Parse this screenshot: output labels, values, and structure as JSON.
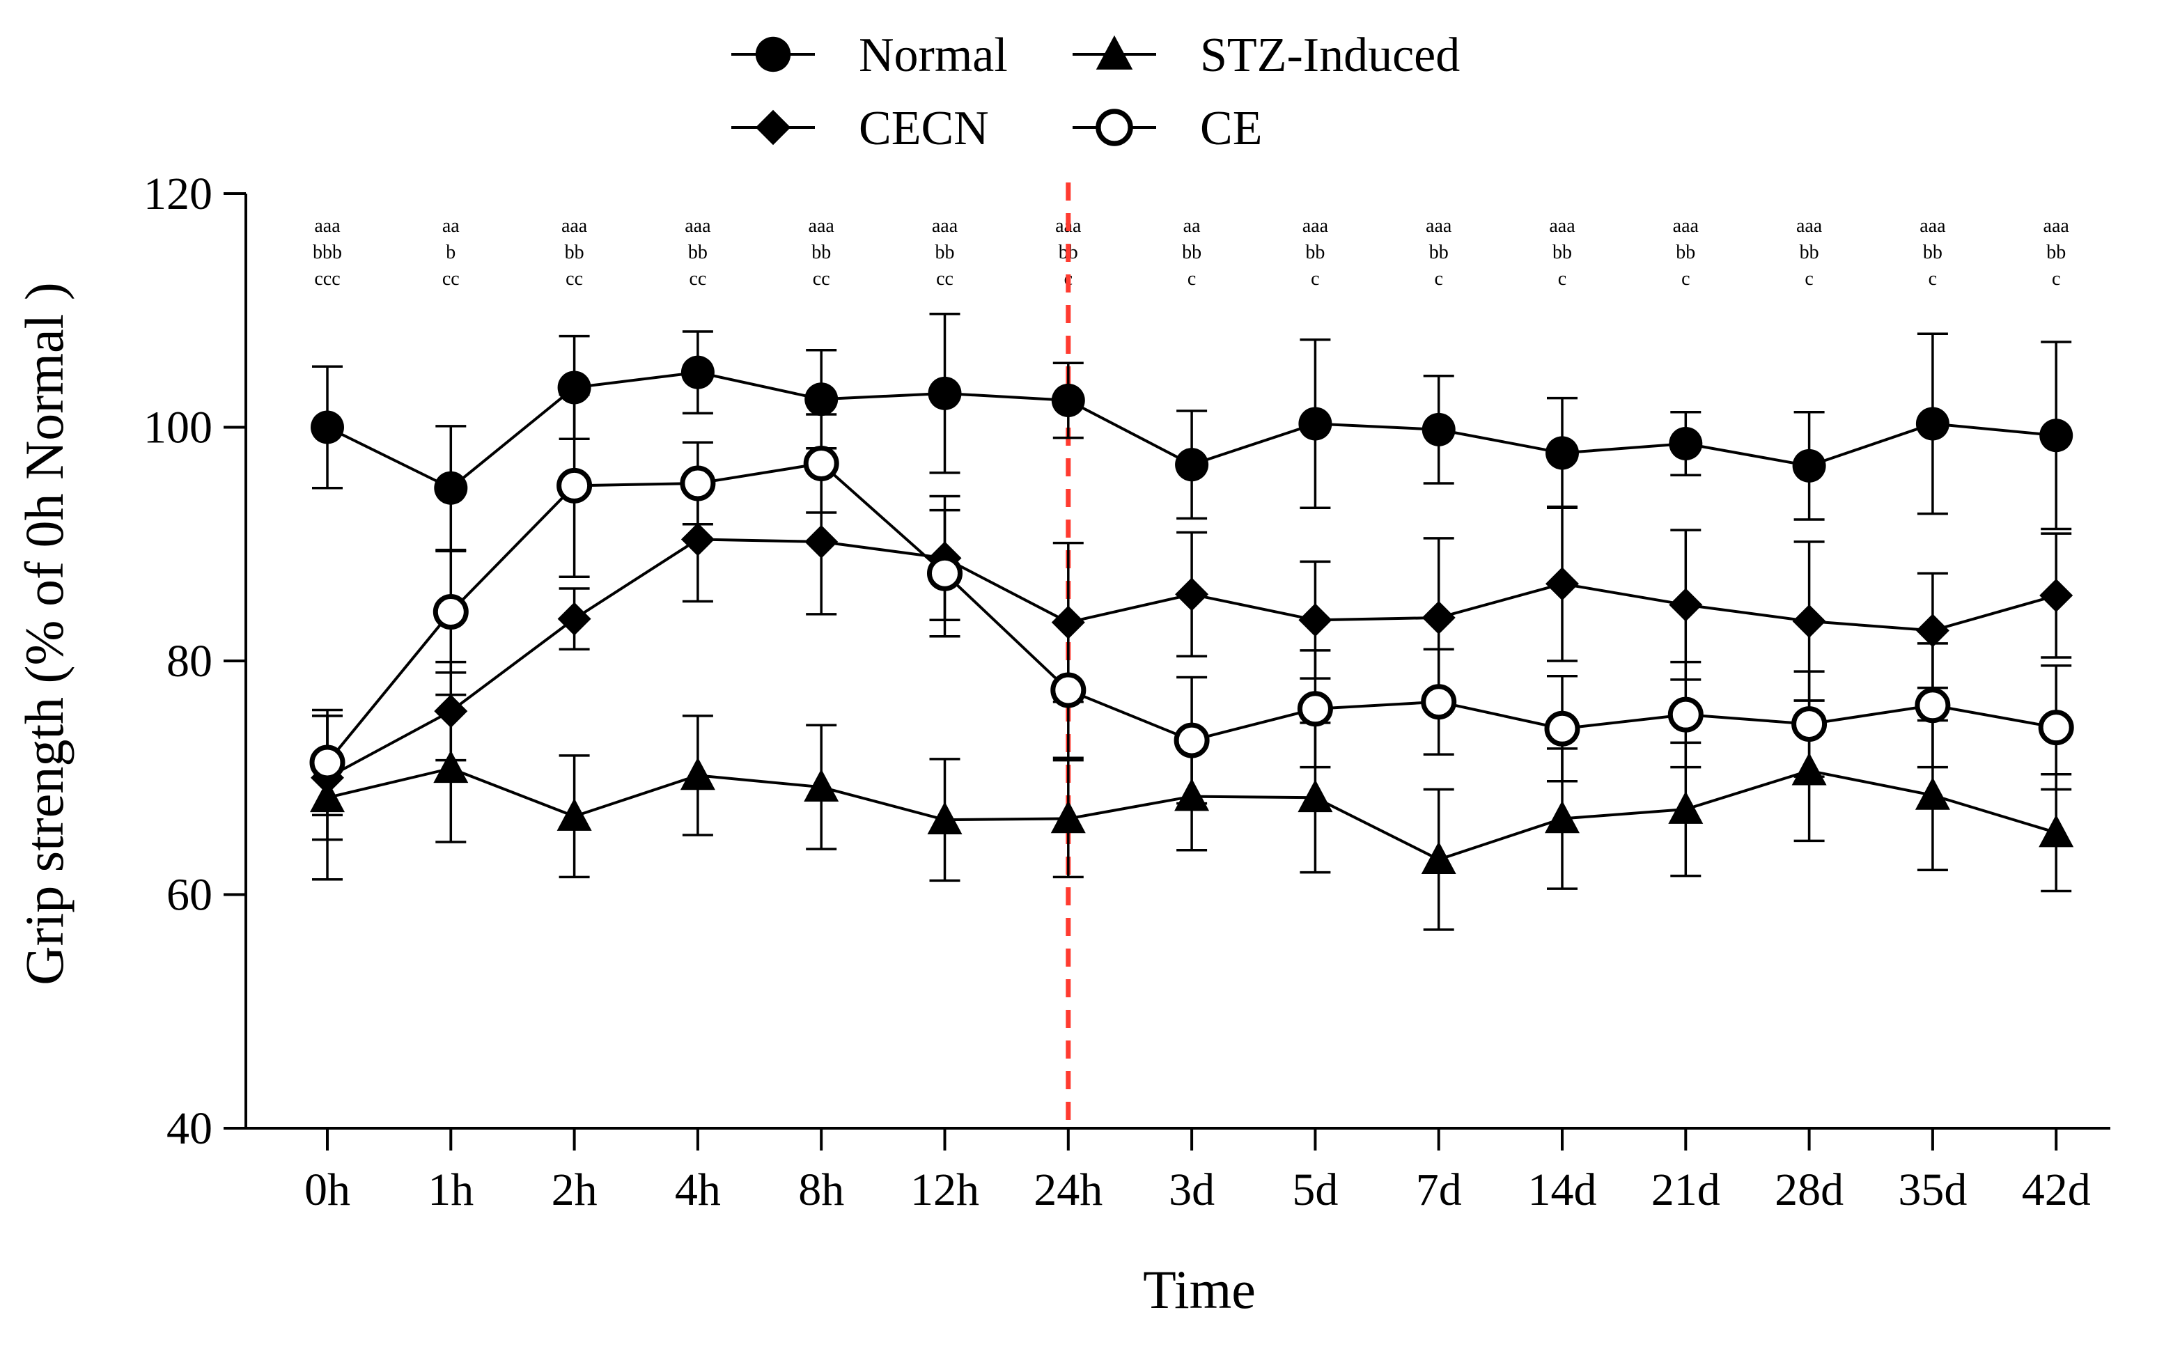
{
  "chart_data": {
    "type": "line",
    "title": "",
    "xlabel": "Time",
    "ylabel": "Grip strength (% of 0h Normal )",
    "categories": [
      "0h",
      "1h",
      "2h",
      "4h",
      "8h",
      "12h",
      "24h",
      "3d",
      "5d",
      "7d",
      "14d",
      "21d",
      "28d",
      "35d",
      "42d"
    ],
    "ylim": [
      40,
      120
    ],
    "yticks": [
      40,
      60,
      80,
      100,
      120
    ],
    "grid": false,
    "legend_position": "top-center",
    "reference_line": {
      "category": "24h",
      "color": "#ff3b30",
      "style": "dashed"
    },
    "series": [
      {
        "name": "Normal",
        "marker": "filled-circle",
        "values": [
          100.0,
          94.8,
          103.4,
          104.7,
          102.4,
          102.9,
          102.3,
          96.8,
          100.3,
          99.8,
          97.8,
          98.6,
          96.7,
          100.3,
          99.3
        ],
        "errors": [
          5.2,
          5.3,
          4.4,
          3.5,
          4.2,
          6.8,
          3.2,
          4.6,
          7.2,
          4.6,
          4.7,
          2.7,
          4.6,
          7.7,
          8.0
        ]
      },
      {
        "name": "STZ-Induced",
        "marker": "filled-triangle",
        "values": [
          68.3,
          70.8,
          66.7,
          70.2,
          69.2,
          66.4,
          66.5,
          68.4,
          68.3,
          63.0,
          66.5,
          67.3,
          70.6,
          68.5,
          65.3
        ],
        "errors": [
          7.0,
          6.3,
          5.2,
          5.1,
          5.3,
          5.2,
          5.0,
          4.6,
          6.4,
          6.0,
          6.0,
          5.7,
          6.0,
          6.4,
          5.0
        ]
      },
      {
        "name": "CECN",
        "marker": "filled-diamond",
        "values": [
          70.0,
          75.7,
          83.6,
          90.4,
          90.2,
          88.8,
          83.3,
          85.7,
          83.5,
          83.7,
          86.6,
          84.8,
          83.4,
          82.6,
          85.6
        ],
        "errors": [
          5.3,
          4.2,
          2.6,
          5.3,
          6.2,
          5.3,
          6.8,
          5.3,
          5.0,
          6.8,
          6.6,
          6.4,
          6.8,
          4.9,
          5.3
        ]
      },
      {
        "name": "CE",
        "marker": "open-circle",
        "values": [
          71.3,
          84.2,
          95.0,
          95.2,
          96.9,
          87.5,
          77.5,
          73.2,
          75.9,
          76.5,
          74.2,
          75.4,
          74.6,
          76.2,
          74.3
        ],
        "errors": [
          4.5,
          5.2,
          7.8,
          3.5,
          4.2,
          5.4,
          5.8,
          5.4,
          5.0,
          4.5,
          4.5,
          4.5,
          4.5,
          5.3,
          5.3
        ]
      }
    ],
    "annotations": [
      [
        "aaa",
        "bbb",
        "ccc"
      ],
      [
        "aa",
        "b",
        "cc"
      ],
      [
        "aaa",
        "bb",
        "cc"
      ],
      [
        "aaa",
        "bb",
        "cc"
      ],
      [
        "aaa",
        "bb",
        "cc"
      ],
      [
        "aaa",
        "bb",
        "cc"
      ],
      [
        "aaa",
        "bb",
        "c"
      ],
      [
        "aa",
        "bb",
        "c"
      ],
      [
        "aaa",
        "bb",
        "c"
      ],
      [
        "aaa",
        "bb",
        "c"
      ],
      [
        "aaa",
        "bb",
        "c"
      ],
      [
        "aaa",
        "bb",
        "c"
      ],
      [
        "aaa",
        "bb",
        "c"
      ],
      [
        "aaa",
        "bb",
        "c"
      ],
      [
        "aaa",
        "bb",
        "c"
      ]
    ]
  }
}
